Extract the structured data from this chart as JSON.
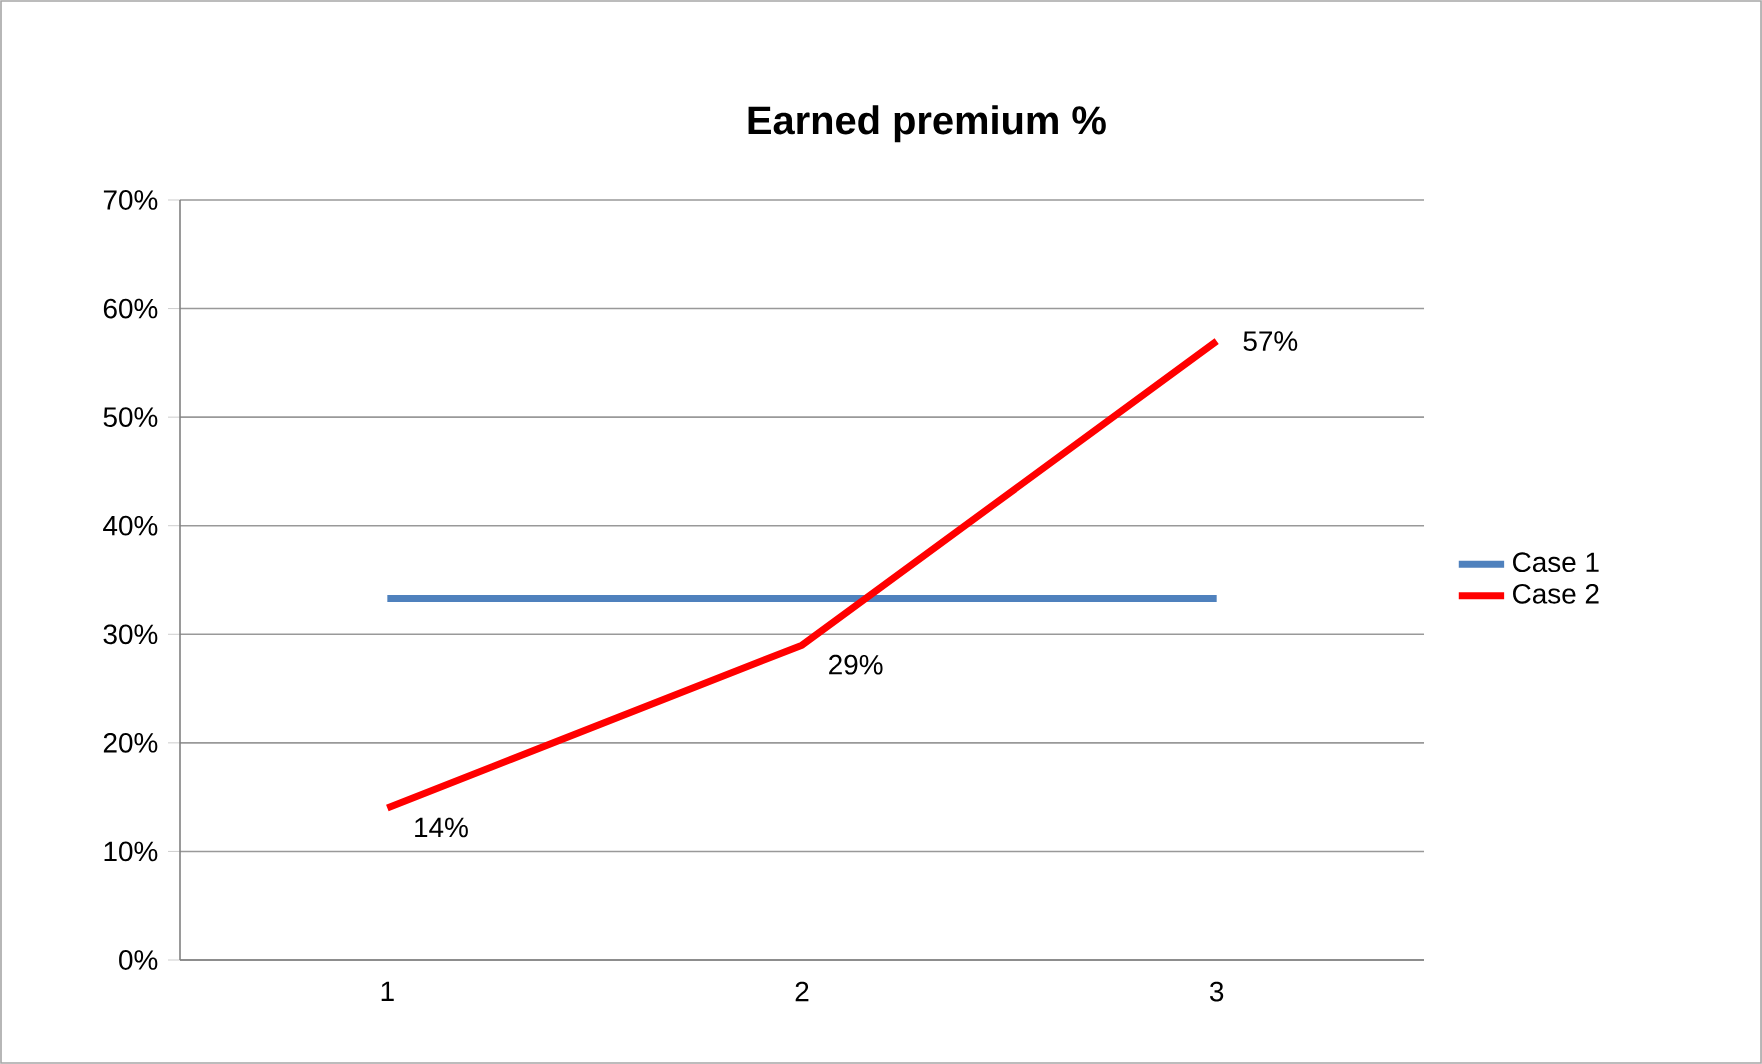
{
  "chart_data": {
    "type": "line",
    "title": "Earned premium %",
    "categories": [
      "1",
      "2",
      "3"
    ],
    "series": [
      {
        "name": "Case 1",
        "color": "#4f81bd",
        "values": [
          33.3,
          33.3,
          33.3
        ]
      },
      {
        "name": "Case 2",
        "color": "#ff0000",
        "values": [
          14,
          29,
          57
        ],
        "value_labels": [
          "14%",
          "29%",
          "57%"
        ]
      }
    ],
    "ylim": [
      0,
      70
    ],
    "yticks": [
      {
        "value": 0,
        "label": "0%"
      },
      {
        "value": 10,
        "label": "10%"
      },
      {
        "value": 20,
        "label": "20%"
      },
      {
        "value": 30,
        "label": "30%"
      },
      {
        "value": 40,
        "label": "40%"
      },
      {
        "value": 50,
        "label": "50%"
      },
      {
        "value": 60,
        "label": "60%"
      },
      {
        "value": 70,
        "label": "70%"
      }
    ],
    "grid": "y",
    "legend": "right",
    "marker": "none",
    "line_style": "solid"
  }
}
